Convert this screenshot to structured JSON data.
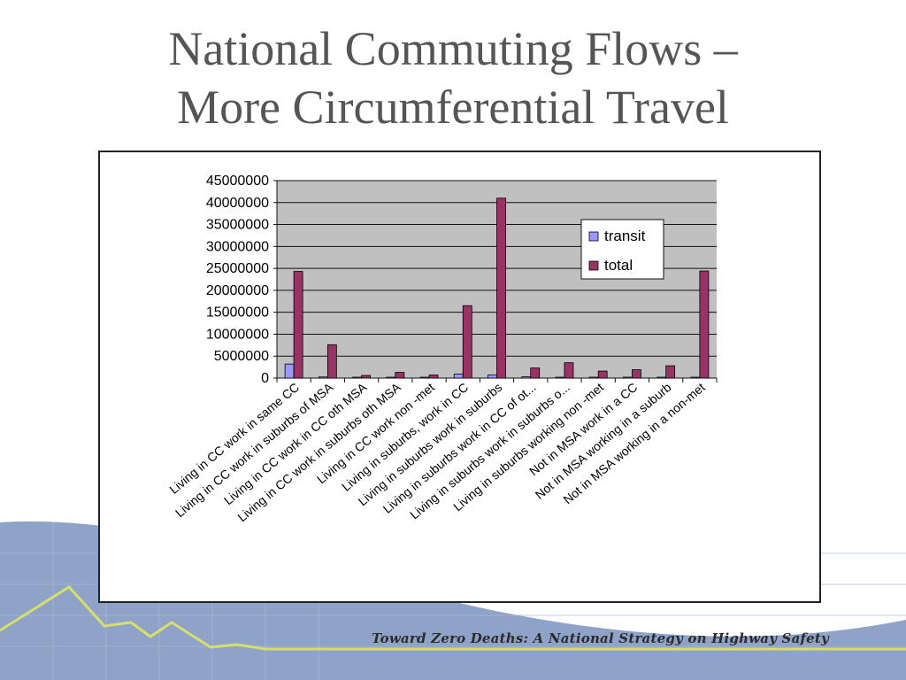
{
  "slide": {
    "title_line1": "National Commuting Flows –",
    "title_line2": "More Circumferential Travel",
    "footer": "Toward Zero Deaths: A National Strategy on Highway Safety"
  },
  "colors": {
    "transit": "#9999ff",
    "total": "#993366",
    "plot_bg": "#c0c0c0",
    "background_wave": "#8fa3c8",
    "background_line": "#d7de6a"
  },
  "chart_data": {
    "type": "bar",
    "title": "",
    "xlabel": "",
    "ylabel": "",
    "ylim": [
      0,
      45000000
    ],
    "yticks": [
      0,
      5000000,
      10000000,
      15000000,
      20000000,
      25000000,
      30000000,
      35000000,
      40000000,
      45000000
    ],
    "grid": true,
    "legend_position": "top-right",
    "categories": [
      "Living in CC work in same CC",
      "Living in CC work in suburbs of  MSA",
      "Living in CC work in CC oth MSA",
      "Living in CC work in suburbs  oth MSA",
      "Living in CC  work non -met",
      "Living in suburbs, work in CC",
      "Living in suburbs work in suburbs",
      "Living in suburbs work in CC of ot...",
      "Living in suburbs work in suburbs o...",
      "Living in suburbs working non -met",
      "Not in MSA work in a CC",
      "Not in MSA working in a suburb",
      "Not in MSA working in a non-met"
    ],
    "series": [
      {
        "name": "transit",
        "values": [
          3200000,
          250000,
          60000,
          50000,
          30000,
          900000,
          700000,
          300000,
          80000,
          40000,
          40000,
          30000,
          100000
        ]
      },
      {
        "name": "total",
        "values": [
          24300000,
          7600000,
          600000,
          1300000,
          700000,
          16500000,
          41000000,
          2300000,
          3500000,
          1600000,
          1900000,
          2800000,
          24400000
        ]
      }
    ]
  }
}
